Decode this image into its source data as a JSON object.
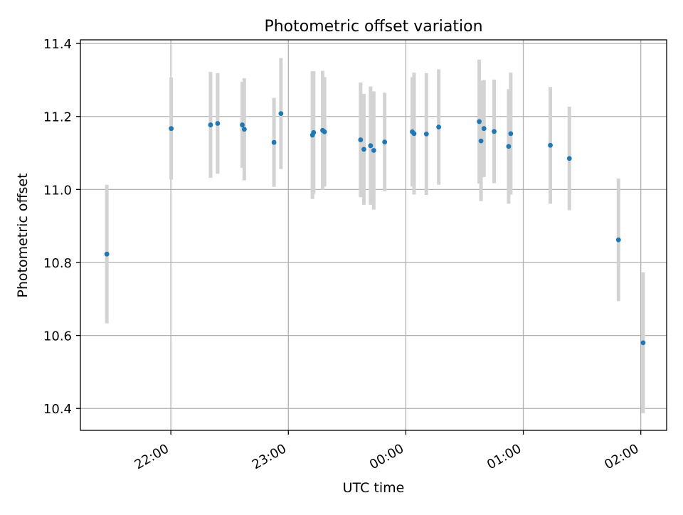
{
  "colors": {
    "point": "#1f77b4",
    "errorbar": "#d3d3d3",
    "grid": "#b0b0b0",
    "axis": "#000000"
  },
  "chart_data": {
    "type": "scatter",
    "title": "Photometric offset variation",
    "xlabel": "UTC time",
    "ylabel": "Photometric offset",
    "x_unit": "hours from 22:00 UTC",
    "xlim": [
      -0.77,
      4.22
    ],
    "ylim": [
      10.34,
      11.41
    ],
    "grid": true,
    "x_ticks": [
      {
        "value": 0,
        "label": "22:00"
      },
      {
        "value": 1,
        "label": "23:00"
      },
      {
        "value": 2,
        "label": "00:00"
      },
      {
        "value": 3,
        "label": "01:00"
      },
      {
        "value": 4,
        "label": "02:00"
      }
    ],
    "y_ticks": [
      {
        "value": 10.4,
        "label": "10.4"
      },
      {
        "value": 10.6,
        "label": "10.6"
      },
      {
        "value": 10.8,
        "label": "10.8"
      },
      {
        "value": 11.0,
        "label": "11.0"
      },
      {
        "value": 11.2,
        "label": "11.2"
      },
      {
        "value": 11.4,
        "label": "11.4"
      }
    ],
    "points": [
      {
        "x": -0.545,
        "y": 10.823,
        "err": 0.19
      },
      {
        "x": 0.003,
        "y": 11.167,
        "err": 0.14
      },
      {
        "x": 0.338,
        "y": 11.177,
        "err": 0.145
      },
      {
        "x": 0.398,
        "y": 11.181,
        "err": 0.138
      },
      {
        "x": 0.608,
        "y": 11.177,
        "err": 0.118
      },
      {
        "x": 0.625,
        "y": 11.165,
        "err": 0.14
      },
      {
        "x": 0.878,
        "y": 11.129,
        "err": 0.122
      },
      {
        "x": 0.937,
        "y": 11.208,
        "err": 0.152
      },
      {
        "x": 1.205,
        "y": 11.149,
        "err": 0.175
      },
      {
        "x": 1.215,
        "y": 11.156,
        "err": 0.168
      },
      {
        "x": 1.292,
        "y": 11.162,
        "err": 0.163
      },
      {
        "x": 1.308,
        "y": 11.158,
        "err": 0.15
      },
      {
        "x": 1.615,
        "y": 11.136,
        "err": 0.157
      },
      {
        "x": 1.643,
        "y": 11.11,
        "err": 0.152
      },
      {
        "x": 1.7,
        "y": 11.12,
        "err": 0.162
      },
      {
        "x": 1.727,
        "y": 11.107,
        "err": 0.162
      },
      {
        "x": 1.82,
        "y": 11.13,
        "err": 0.135
      },
      {
        "x": 2.055,
        "y": 11.158,
        "err": 0.15
      },
      {
        "x": 2.07,
        "y": 11.153,
        "err": 0.167
      },
      {
        "x": 2.175,
        "y": 11.152,
        "err": 0.167
      },
      {
        "x": 2.28,
        "y": 11.171,
        "err": 0.158
      },
      {
        "x": 2.625,
        "y": 11.186,
        "err": 0.17
      },
      {
        "x": 2.64,
        "y": 11.133,
        "err": 0.165
      },
      {
        "x": 2.665,
        "y": 11.167,
        "err": 0.133
      },
      {
        "x": 2.752,
        "y": 11.159,
        "err": 0.142
      },
      {
        "x": 2.875,
        "y": 11.118,
        "err": 0.157
      },
      {
        "x": 2.893,
        "y": 11.153,
        "err": 0.167
      },
      {
        "x": 3.23,
        "y": 11.121,
        "err": 0.16
      },
      {
        "x": 3.392,
        "y": 11.085,
        "err": 0.142
      },
      {
        "x": 3.81,
        "y": 10.862,
        "err": 0.168
      },
      {
        "x": 4.02,
        "y": 10.58,
        "err": 0.193
      }
    ]
  }
}
